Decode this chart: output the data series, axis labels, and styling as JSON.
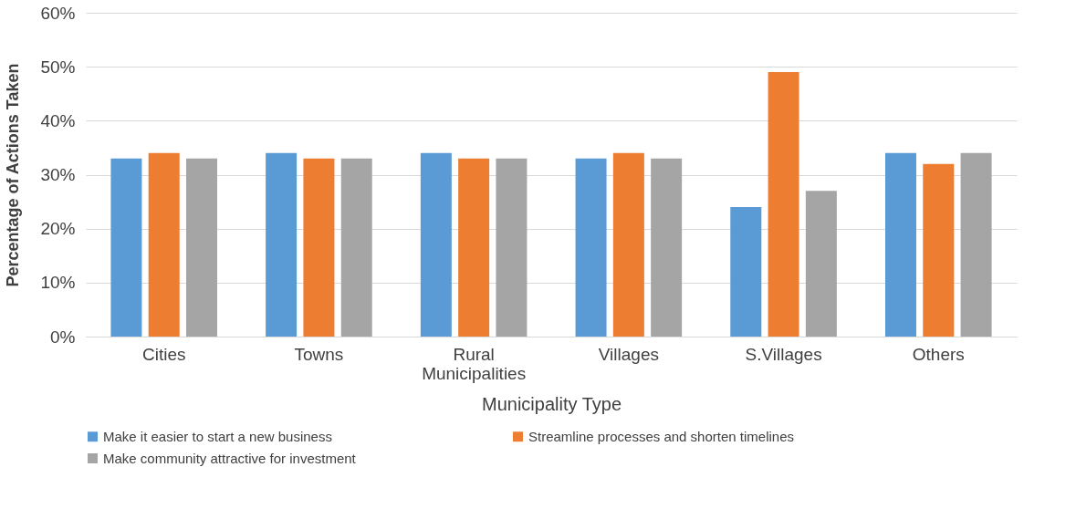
{
  "chart_data": {
    "type": "bar",
    "xlabel": "Municipality Type",
    "ylabel": "Percentage of Actions Taken",
    "categories": [
      "Cities",
      "Towns",
      "Rural Municipalities",
      "Villages",
      "S.Villages",
      "Others"
    ],
    "series": [
      {
        "name": "Make it easier to start a new business",
        "color": "#5b9bd5",
        "values": [
          33,
          34,
          34,
          33,
          24,
          34
        ]
      },
      {
        "name": "Streamline processes and shorten timelines",
        "color": "#ed7d31",
        "values": [
          34,
          33,
          33,
          34,
          49,
          32
        ]
      },
      {
        "name": "Make community attractive for investment",
        "color": "#a5a5a5",
        "values": [
          33,
          33,
          33,
          33,
          27,
          34
        ]
      }
    ],
    "ylim": [
      0,
      60
    ],
    "yticks": [
      {
        "value": 0,
        "label": "0%"
      },
      {
        "value": 10,
        "label": "10%"
      },
      {
        "value": 20,
        "label": "20%"
      },
      {
        "value": 30,
        "label": "30%"
      },
      {
        "value": 40,
        "label": "40%"
      },
      {
        "value": 50,
        "label": "50%"
      },
      {
        "value": 60,
        "label": "60%"
      }
    ],
    "grid": "y",
    "legend": "bottom"
  }
}
